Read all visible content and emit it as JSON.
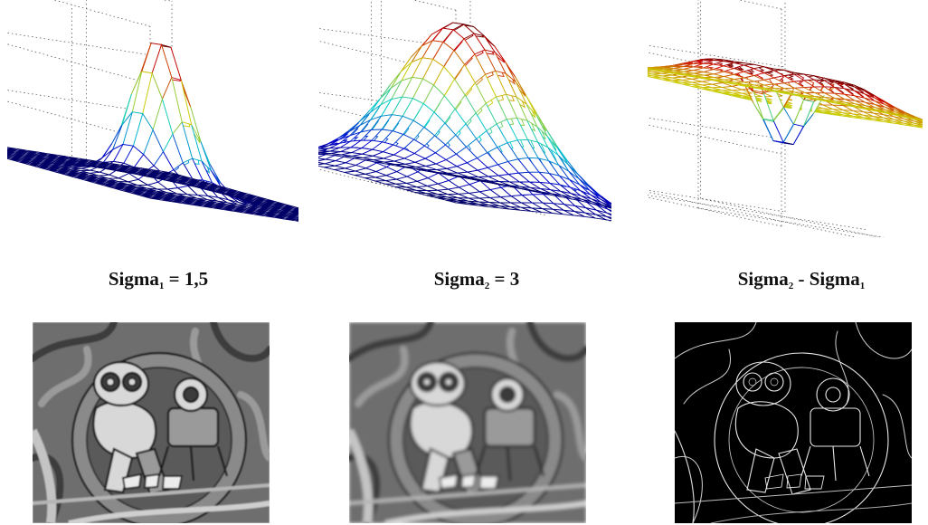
{
  "panels": [
    {
      "label": {
        "base": "Sigma",
        "sub": "1",
        "rest": " = 1,5"
      },
      "surface": "narrow-gaussian",
      "image": "blurred-graffiti-photo-sigma1"
    },
    {
      "label": {
        "base": "Sigma",
        "sub": "2",
        "rest": " = 3"
      },
      "surface": "wide-gaussian",
      "image": "blurred-graffiti-photo-sigma2"
    },
    {
      "label": {
        "base": "Sigma",
        "sub": "2",
        "rest": " - Sigma",
        "sub2": "1"
      },
      "surface": "difference-of-gaussians",
      "image": "dog-edge-map"
    }
  ],
  "colors": {
    "background": "#ffffff",
    "mesh_low": "#1a1a8c",
    "mesh_high": "#c81e1e",
    "grid": "#555555"
  }
}
